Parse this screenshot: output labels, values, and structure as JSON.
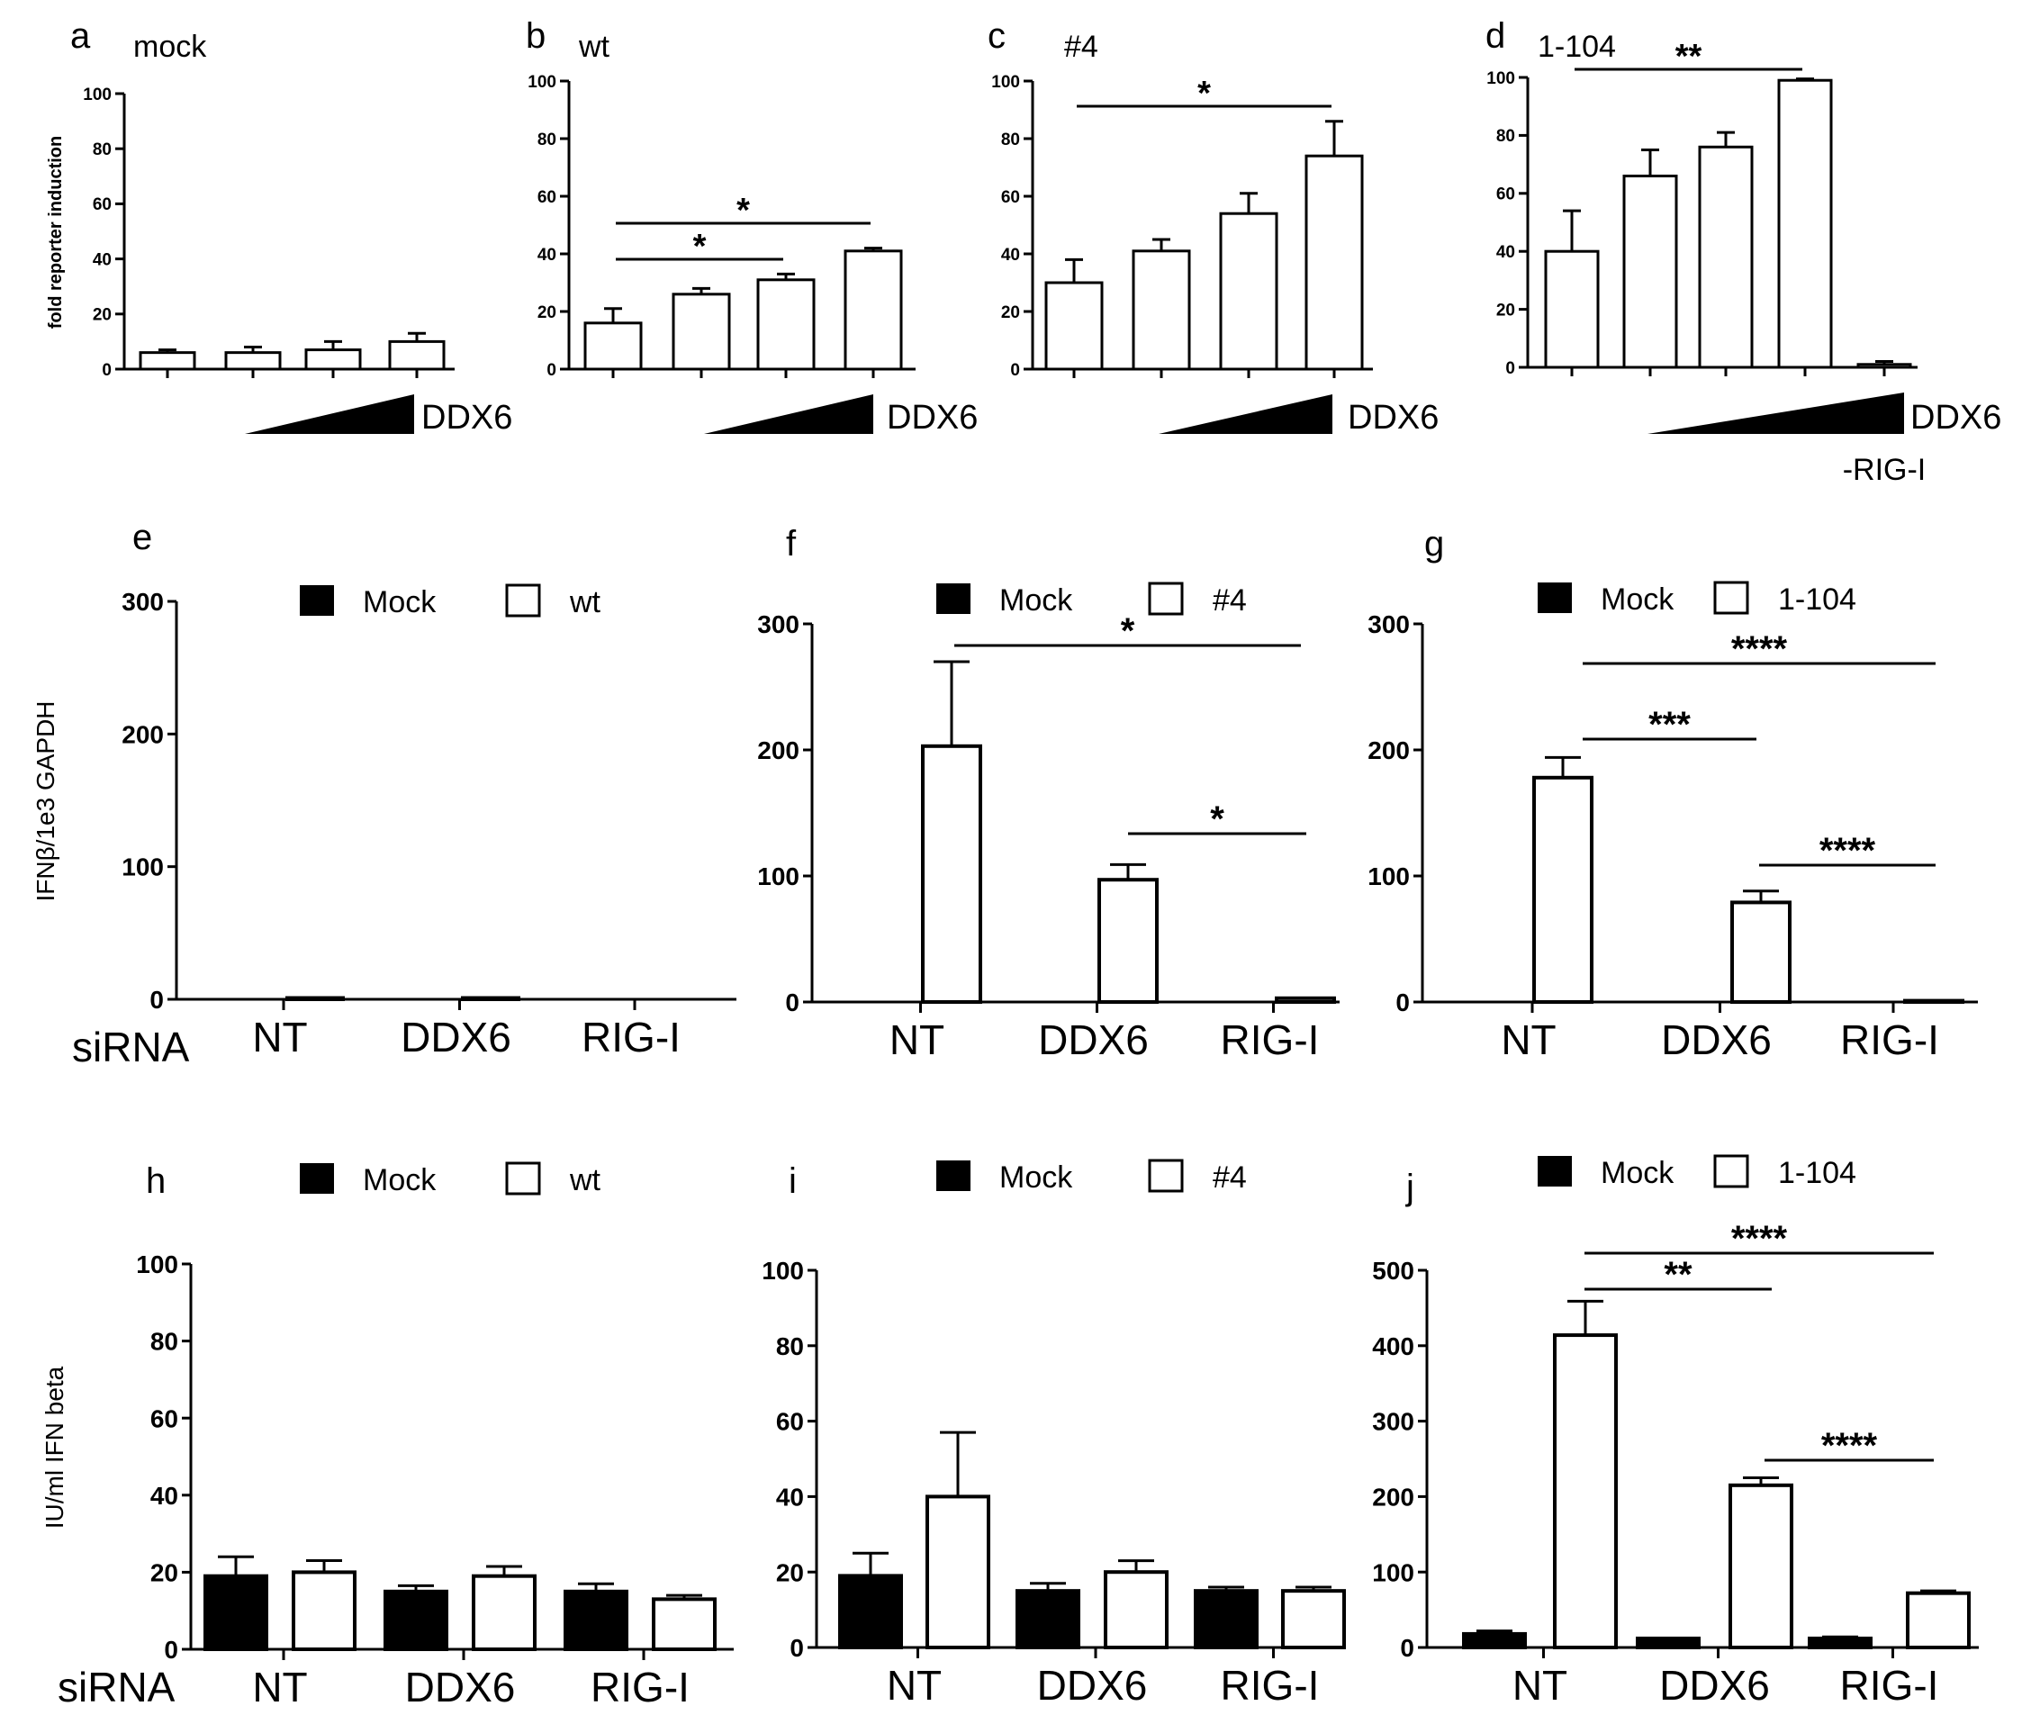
{
  "figure": {
    "panel_letters": [
      "a",
      "b",
      "c",
      "d",
      "e",
      "f",
      "g",
      "h",
      "i",
      "j"
    ],
    "ddx6_label": "DDX6",
    "rigi_label": "-RIG-I",
    "siRNA_label": "siRNA"
  },
  "chart_data": [
    {
      "id": "a",
      "type": "bar",
      "title": "mock",
      "ylabel": "fold reporter induction",
      "ylim": [
        0,
        100
      ],
      "yticks": [
        0,
        20,
        40,
        60,
        80,
        100
      ],
      "categories": [
        "1",
        "2",
        "3",
        "4"
      ],
      "values": [
        6,
        6,
        7,
        10
      ],
      "errors": [
        1,
        2,
        3,
        3
      ],
      "annotations": [],
      "xlabel": "DDX6"
    },
    {
      "id": "b",
      "type": "bar",
      "title": "wt",
      "ylim": [
        0,
        100
      ],
      "yticks": [
        0,
        20,
        40,
        60,
        80,
        100
      ],
      "categories": [
        "1",
        "2",
        "3",
        "4"
      ],
      "values": [
        16,
        26,
        31,
        41
      ],
      "errors": [
        5,
        2,
        2,
        1
      ],
      "annotations": [
        {
          "from": 0,
          "to": 2,
          "text": "*"
        },
        {
          "from": 0,
          "to": 3,
          "text": "*"
        }
      ],
      "xlabel": "DDX6"
    },
    {
      "id": "c",
      "type": "bar",
      "title": "#4",
      "ylim": [
        0,
        100
      ],
      "yticks": [
        0,
        20,
        40,
        60,
        80,
        100
      ],
      "categories": [
        "1",
        "2",
        "3",
        "4"
      ],
      "values": [
        30,
        41,
        54,
        74
      ],
      "errors": [
        8,
        4,
        7,
        12
      ],
      "annotations": [
        {
          "from": 0,
          "to": 3,
          "text": "*"
        }
      ],
      "xlabel": "DDX6"
    },
    {
      "id": "d",
      "type": "bar",
      "title": "1-104",
      "ylim": [
        0,
        100
      ],
      "yticks": [
        0,
        20,
        40,
        60,
        80,
        100
      ],
      "categories": [
        "1",
        "2",
        "3",
        "4",
        "-RIG-I"
      ],
      "values": [
        40,
        66,
        76,
        99,
        1
      ],
      "errors": [
        14,
        9,
        5,
        0.5,
        1
      ],
      "annotations": [
        {
          "from": 0,
          "to": 3,
          "text": "**"
        }
      ],
      "xlabel": "DDX6"
    },
    {
      "id": "e",
      "type": "bar",
      "ylabel": "IFNβ/1e3 GAPDH",
      "ylim": [
        0,
        300
      ],
      "yticks": [
        0,
        100,
        200,
        300
      ],
      "categories": [
        "NT",
        "DDX6",
        "RIG-I"
      ],
      "series": [
        {
          "name": "Mock",
          "values": [
            0,
            0,
            0
          ],
          "errors": [
            0,
            0,
            0
          ]
        },
        {
          "name": "wt",
          "values": [
            1,
            1,
            0
          ],
          "errors": [
            0,
            0,
            0
          ]
        }
      ],
      "annotations": []
    },
    {
      "id": "f",
      "type": "bar",
      "ylim": [
        0,
        300
      ],
      "yticks": [
        0,
        100,
        200,
        300
      ],
      "categories": [
        "NT",
        "DDX6",
        "RIG-I"
      ],
      "series": [
        {
          "name": "Mock",
          "values": [
            0,
            0,
            0
          ],
          "errors": [
            0,
            0,
            0
          ]
        },
        {
          "name": "#4",
          "values": [
            203,
            97,
            3
          ],
          "errors": [
            67,
            12,
            0
          ]
        }
      ],
      "annotations": [
        {
          "from": "NT",
          "to": "RIG-I",
          "text": "*"
        },
        {
          "from": "DDX6",
          "to": "RIG-I",
          "text": "*"
        }
      ]
    },
    {
      "id": "g",
      "type": "bar",
      "ylim": [
        0,
        300
      ],
      "yticks": [
        0,
        100,
        200,
        300
      ],
      "categories": [
        "NT",
        "DDX6",
        "RIG-I"
      ],
      "series": [
        {
          "name": "Mock",
          "values": [
            0,
            0,
            0
          ],
          "errors": [
            0,
            0,
            0
          ]
        },
        {
          "name": "1-104",
          "values": [
            178,
            79,
            1
          ],
          "errors": [
            16,
            9,
            0
          ]
        }
      ],
      "annotations": [
        {
          "from": "NT",
          "to": "RIG-I",
          "text": "****"
        },
        {
          "from": "NT",
          "to": "DDX6",
          "text": "***"
        },
        {
          "from": "DDX6",
          "to": "RIG-I",
          "text": "****"
        }
      ]
    },
    {
      "id": "h",
      "type": "bar",
      "ylabel": "IU/ml IFN beta",
      "ylim": [
        0,
        100
      ],
      "yticks": [
        0,
        20,
        40,
        60,
        80,
        100
      ],
      "categories": [
        "NT",
        "DDX6",
        "RIG-I"
      ],
      "series": [
        {
          "name": "Mock",
          "values": [
            19,
            15,
            15
          ],
          "errors": [
            5,
            1.5,
            2
          ]
        },
        {
          "name": "wt",
          "values": [
            20,
            19,
            13
          ],
          "errors": [
            3,
            2.5,
            1
          ]
        }
      ],
      "annotations": []
    },
    {
      "id": "i",
      "type": "bar",
      "ylim": [
        0,
        100
      ],
      "yticks": [
        0,
        20,
        40,
        60,
        80,
        100
      ],
      "categories": [
        "NT",
        "DDX6",
        "RIG-I"
      ],
      "series": [
        {
          "name": "Mock",
          "values": [
            19,
            15,
            15
          ],
          "errors": [
            6,
            2,
            1
          ]
        },
        {
          "name": "#4",
          "values": [
            40,
            20,
            15
          ],
          "errors": [
            17,
            3,
            1
          ]
        }
      ],
      "annotations": []
    },
    {
      "id": "j",
      "type": "bar",
      "ylim": [
        0,
        500
      ],
      "yticks": [
        0,
        100,
        200,
        300,
        400,
        500
      ],
      "categories": [
        "NT",
        "DDX6",
        "RIG-I"
      ],
      "series": [
        {
          "name": "Mock",
          "values": [
            18,
            12,
            12
          ],
          "errors": [
            4,
            0,
            2
          ]
        },
        {
          "name": "1-104",
          "values": [
            414,
            215,
            72
          ],
          "errors": [
            45,
            10,
            3
          ]
        }
      ],
      "annotations": [
        {
          "from": "NT",
          "to": "RIG-I",
          "text": "****"
        },
        {
          "from": "NT",
          "to": "DDX6",
          "text": "**"
        },
        {
          "from": "DDX6",
          "to": "RIG-I",
          "text": "****"
        }
      ]
    }
  ]
}
